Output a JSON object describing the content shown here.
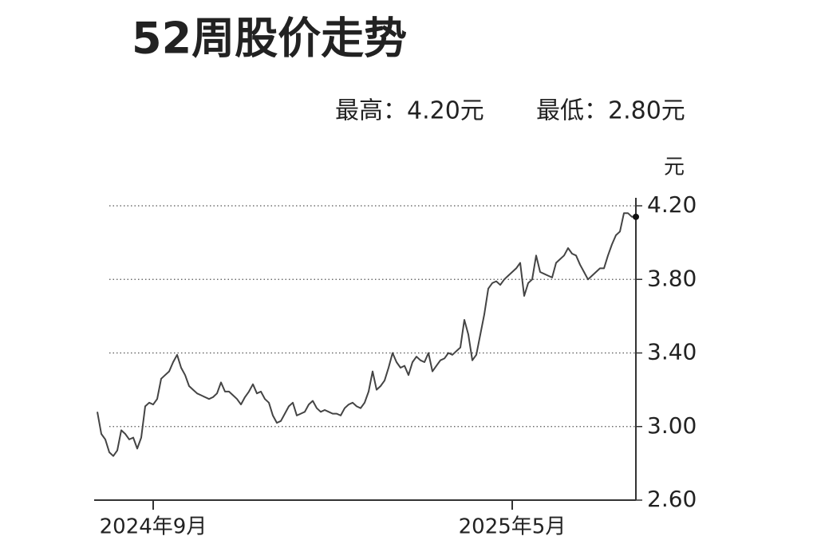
{
  "chart_data": {
    "type": "line",
    "title": "52周股价走势",
    "annotations": [
      "最高：4.20元",
      "最低：2.80元"
    ],
    "y_axis_label": "元",
    "categories": [
      null,
      null,
      null,
      null,
      null,
      null,
      null,
      null,
      null,
      null,
      null,
      null,
      null,
      null,
      "2024年9月",
      null,
      null,
      null,
      null,
      null,
      null,
      null,
      null,
      null,
      null,
      null,
      null,
      null,
      null,
      null,
      null,
      null,
      null,
      null,
      null,
      null,
      null,
      null,
      null,
      null,
      null,
      null,
      null,
      null,
      null,
      null,
      null,
      null,
      null,
      null,
      null,
      null,
      null,
      null,
      null,
      null,
      null,
      null,
      null,
      null,
      null,
      null,
      null,
      null,
      null,
      null,
      null,
      null,
      null,
      null,
      null,
      null,
      null,
      null,
      null,
      null,
      null,
      null,
      null,
      null,
      null,
      null,
      null,
      null,
      null,
      null,
      null,
      null,
      null,
      null,
      null,
      null,
      null,
      null,
      null,
      null,
      null,
      null,
      null,
      null,
      null,
      null,
      null,
      null,
      "2025年5月",
      null,
      null,
      null,
      null,
      null,
      null,
      null,
      null,
      null,
      null,
      null,
      null,
      null,
      null,
      null,
      null,
      null,
      null,
      null,
      null,
      null,
      null,
      null,
      null,
      null,
      null,
      null,
      null,
      null,
      null,
      null
    ],
    "values": [
      3.08,
      2.96,
      2.93,
      2.86,
      2.84,
      2.87,
      2.98,
      2.96,
      2.93,
      2.94,
      2.88,
      2.94,
      3.11,
      3.13,
      3.12,
      3.15,
      3.26,
      3.28,
      3.3,
      3.35,
      3.39,
      3.32,
      3.28,
      3.22,
      3.2,
      3.18,
      3.17,
      3.16,
      3.15,
      3.16,
      3.18,
      3.24,
      3.19,
      3.19,
      3.17,
      3.15,
      3.12,
      3.16,
      3.19,
      3.23,
      3.18,
      3.19,
      3.15,
      3.13,
      3.06,
      3.02,
      3.03,
      3.07,
      3.11,
      3.13,
      3.06,
      3.07,
      3.08,
      3.12,
      3.14,
      3.1,
      3.08,
      3.09,
      3.08,
      3.07,
      3.07,
      3.06,
      3.1,
      3.12,
      3.13,
      3.11,
      3.1,
      3.13,
      3.19,
      3.3,
      3.2,
      3.22,
      3.25,
      3.32,
      3.4,
      3.35,
      3.32,
      3.33,
      3.28,
      3.35,
      3.38,
      3.36,
      3.35,
      3.4,
      3.3,
      3.33,
      3.36,
      3.37,
      3.4,
      3.39,
      3.41,
      3.43,
      3.58,
      3.5,
      3.36,
      3.39,
      3.5,
      3.61,
      3.75,
      3.78,
      3.79,
      3.77,
      3.8,
      3.82,
      3.84,
      3.86,
      3.89,
      3.71,
      3.78,
      3.8,
      3.93,
      3.84,
      3.83,
      3.82,
      3.81,
      3.89,
      3.91,
      3.93,
      3.97,
      3.94,
      3.93,
      3.88,
      3.84,
      3.8,
      3.82,
      3.84,
      3.86,
      3.86,
      3.93,
      3.99,
      4.04,
      4.06,
      4.16,
      4.16,
      4.14,
      4.14
    ],
    "color": "#444444",
    "ylim": [
      2.6,
      4.2
    ],
    "yticks": [
      {
        "value": 2.6,
        "label": "2.60"
      },
      {
        "value": 3.0,
        "label": "3.00"
      },
      {
        "value": 3.4,
        "label": "3.40"
      },
      {
        "value": 3.8,
        "label": "3.80"
      },
      {
        "value": 4.2,
        "label": "4.20"
      }
    ],
    "grid": true,
    "y_axis_side": "right",
    "highlight_last": true
  }
}
